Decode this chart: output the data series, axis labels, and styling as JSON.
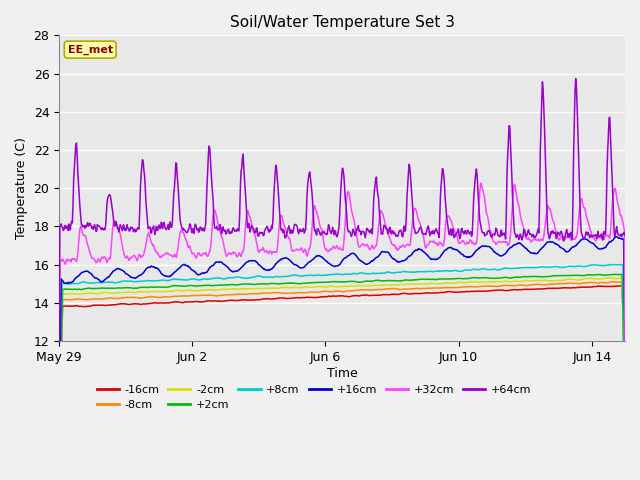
{
  "title": "Soil/Water Temperature Set 3",
  "xlabel": "Time",
  "ylabel": "Temperature (C)",
  "ylim": [
    12,
    28
  ],
  "yticks": [
    12,
    14,
    16,
    18,
    20,
    22,
    24,
    26,
    28
  ],
  "fig_bg": "#f0f0f0",
  "axes_bg": "#e8e8e8",
  "grid_color": "#ffffff",
  "watermark": "EE_met",
  "series": [
    {
      "label": "-16cm",
      "color": "#dd0000"
    },
    {
      "label": "-8cm",
      "color": "#ff8800"
    },
    {
      "label": "-2cm",
      "color": "#dddd00"
    },
    {
      "label": "+2cm",
      "color": "#00bb00"
    },
    {
      "label": "+8cm",
      "color": "#00cccc"
    },
    {
      "label": "+16cm",
      "color": "#0000cc"
    },
    {
      "label": "+32cm",
      "color": "#ff44ff"
    },
    {
      "label": "+64cm",
      "color": "#9900cc"
    }
  ],
  "xtick_positions": [
    0,
    4,
    8,
    12,
    16
  ],
  "xtick_labels": [
    "May 29",
    "Jun 2",
    "Jun 6",
    "Jun 10",
    "Jun 14"
  ],
  "n_days": 17,
  "points_per_day": 48
}
